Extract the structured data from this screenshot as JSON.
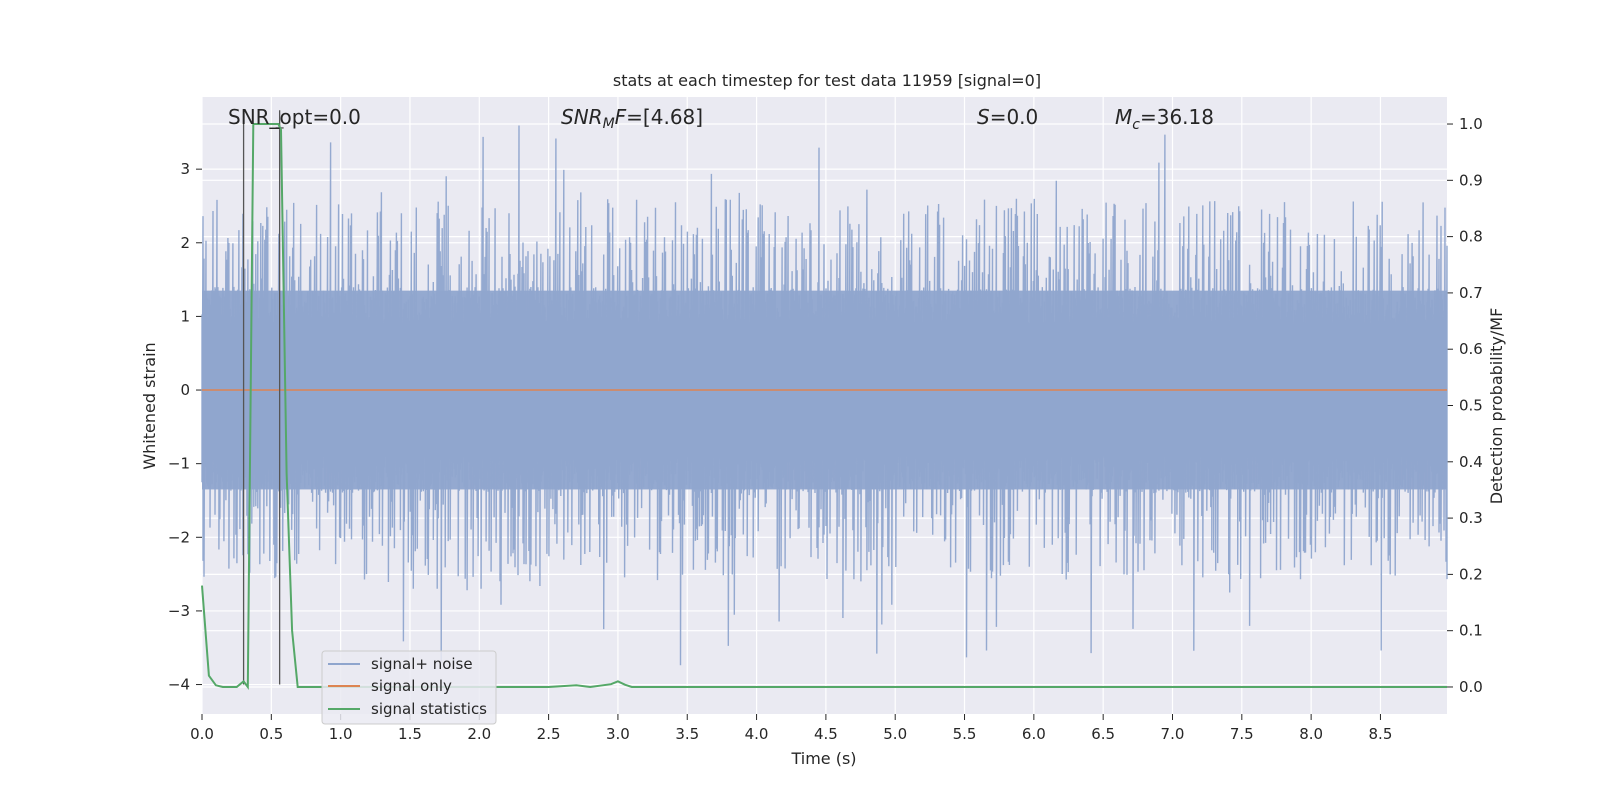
{
  "chart_data": {
    "type": "line",
    "title": "stats at each timestep for test data 11959 [signal=0]",
    "xlabel": "Time (s)",
    "ylabel": "Whitened strain",
    "y2label": "Detection probability/MF",
    "xlim": [
      0.0,
      8.98
    ],
    "ylim": [
      -4.4,
      3.98
    ],
    "y2lim": [
      -0.048,
      1.048
    ],
    "x_ticks": [
      "0.0",
      "0.5",
      "1.0",
      "1.5",
      "2.0",
      "2.5",
      "3.0",
      "3.5",
      "4.0",
      "4.5",
      "5.0",
      "5.5",
      "6.0",
      "6.5",
      "7.0",
      "7.5",
      "8.0",
      "8.5"
    ],
    "y_ticks": [
      "−4",
      "−3",
      "−2",
      "−1",
      "0",
      "1",
      "2",
      "3"
    ],
    "y2_ticks": [
      "0.0",
      "0.1",
      "0.2",
      "0.3",
      "0.4",
      "0.5",
      "0.6",
      "0.7",
      "0.8",
      "0.9",
      "1.0"
    ],
    "grid": true,
    "legend_position": "lower-left",
    "annotations": {
      "snr_opt": "SNR_opt=0.0",
      "snr_mf_var": "SNR",
      "snr_mf_sub": "M",
      "snr_mf_var2": "F",
      "snr_mf_val": "=[4.68]",
      "s_var": "S",
      "s_val": "=0.0",
      "mc_var": "M",
      "mc_sub": "c",
      "mc_val": "=36.18"
    },
    "series": [
      {
        "name": "signal+ noise",
        "color": "#8fa5cd",
        "kind": "noise",
        "duration_s": 8.98,
        "typical_min": -2.6,
        "typical_max": 2.6,
        "extreme_min": -3.8,
        "extreme_max": 3.6
      },
      {
        "name": "signal only",
        "color": "#dd8452",
        "x": [
          0.0,
          8.98
        ],
        "y": [
          0.0,
          0.0
        ]
      },
      {
        "name": "signal statistics",
        "color": "#55a868",
        "axis": "right",
        "x": [
          0.0,
          0.05,
          0.1,
          0.15,
          0.2,
          0.25,
          0.3,
          0.33,
          0.37,
          0.45,
          0.55,
          0.57,
          0.61,
          0.65,
          0.69,
          0.75,
          1.0,
          2.0,
          2.5,
          2.7,
          2.8,
          2.95,
          3.0,
          3.05,
          3.1,
          4.0,
          5.0,
          6.0,
          7.0,
          8.0,
          8.98
        ],
        "y": [
          0.18,
          0.02,
          0.003,
          0.0,
          0.0,
          0.0,
          0.01,
          0.0,
          1.0,
          1.0,
          1.0,
          0.99,
          0.38,
          0.1,
          0.0,
          0.0,
          0.0,
          0.0,
          0.0,
          0.003,
          0.0,
          0.005,
          0.01,
          0.004,
          0.0,
          0.0,
          0.0,
          0.0,
          0.0,
          0.0,
          0.0
        ]
      },
      {
        "name": "marker lines",
        "color": "#555555",
        "x_positions": [
          0.3,
          0.56
        ],
        "y_range": [
          -4.0,
          3.8
        ]
      }
    ]
  }
}
